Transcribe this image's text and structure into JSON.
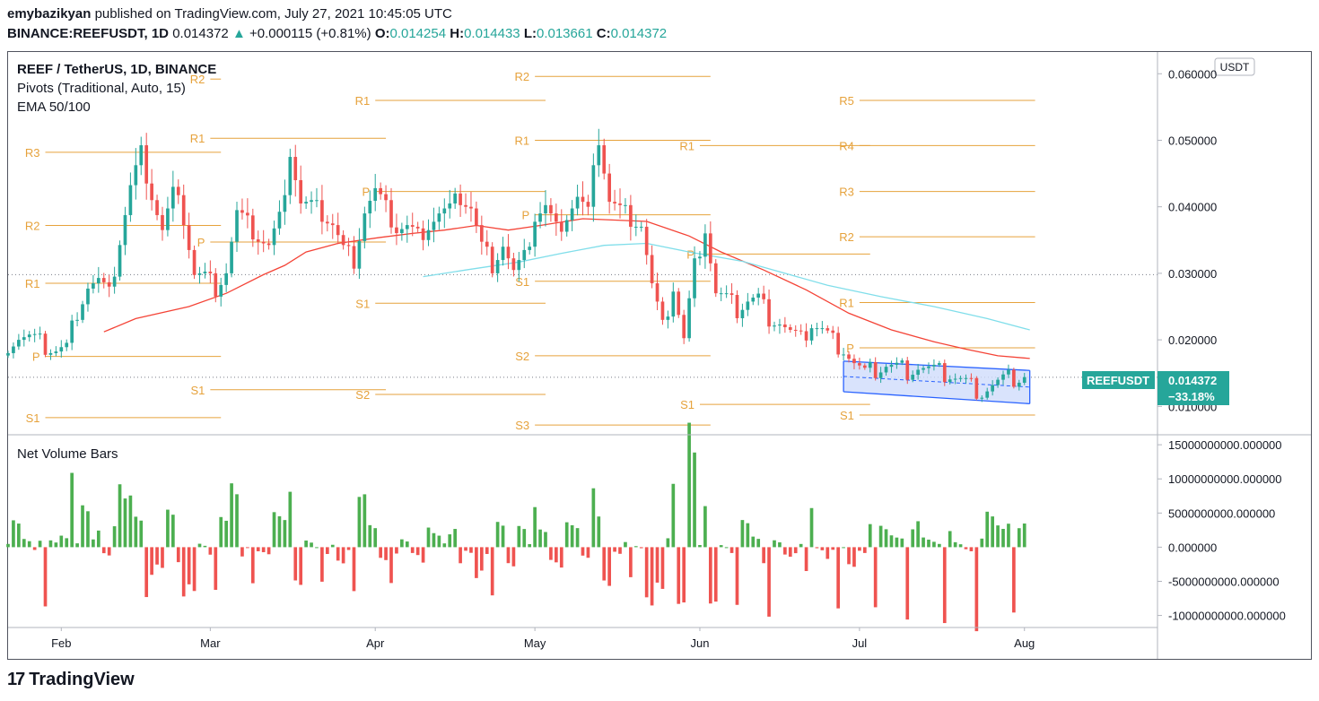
{
  "header": {
    "author": "emybazikyan",
    "published_text": "published on TradingView.com, July 27, 2021 10:45:05 UTC",
    "symbol": "BINANCE:REEFUSDT, 1D",
    "last": "0.014372",
    "arrow": "▲",
    "change": "+0.000115 (+0.81%)",
    "o_label": "O:",
    "o_value": "0.014254",
    "h_label": "H:",
    "h_value": "0.014433",
    "l_label": "L:",
    "l_value": "0.013661",
    "c_label": "C:",
    "c_value": "0.014372"
  },
  "legend": {
    "title": "REEF / TetherUS, 1D, BINANCE",
    "pivots": "Pivots (Traditional, Auto, 15)",
    "ema": "EMA 50/100",
    "volume_title": "Net Volume Bars"
  },
  "axis": {
    "currency_badge": "USDT",
    "price_ticks": [
      "0.060000",
      "0.050000",
      "0.040000",
      "0.030000",
      "0.020000",
      "0.010000"
    ],
    "price_values": [
      0.06,
      0.05,
      0.04,
      0.03,
      0.02,
      0.01
    ],
    "volume_ticks": [
      "15000000000.000000",
      "10000000000.000000",
      "5000000000.000000",
      "0.000000",
      "-5000000000.000000",
      "-10000000000.000000"
    ],
    "volume_values": [
      15000000000,
      10000000000,
      5000000000,
      0,
      -5000000000,
      -10000000000
    ],
    "time_ticks": [
      "Feb",
      "Mar",
      "Apr",
      "May",
      "Jun",
      "Jul",
      "Aug"
    ]
  },
  "price_label": {
    "symbol": "REEFUSDT",
    "value": "0.014372",
    "change": "−33.18%"
  },
  "colors": {
    "up": "#26a69a",
    "down": "#ef5350",
    "vol_up": "#4caf50",
    "vol_down": "#ef5350",
    "ema50": "#f44336",
    "ema100": "#80deea",
    "pivot": "#e6a23c",
    "pivot_text": "#e6a23c",
    "channel_fill": "#cfdcfb",
    "channel_line": "#2962ff",
    "badge": "#26a69a"
  },
  "logo": {
    "mark": "17",
    "text": "TradingView"
  },
  "chart_data": {
    "type": "candlestick",
    "title": "REEF / TetherUS, 1D, BINANCE",
    "ylim": [
      0.006,
      0.063
    ],
    "x_range_days": [
      0,
      216
    ],
    "time_ticks_day": [
      10,
      38,
      69,
      99,
      130,
      160,
      191
    ],
    "pivot_segments": [
      {
        "label": "R3",
        "value": 0.0482,
        "d0": 7,
        "d1": 40
      },
      {
        "label": "R2",
        "value": 0.0372,
        "d0": 7,
        "d1": 40
      },
      {
        "label": "R1",
        "value": 0.0285,
        "d0": 7,
        "d1": 40
      },
      {
        "label": "P",
        "value": 0.0175,
        "d0": 7,
        "d1": 40
      },
      {
        "label": "S1",
        "value": 0.0083,
        "d0": 7,
        "d1": 40
      },
      {
        "label": "R2",
        "value": 0.0592,
        "d0": 38,
        "d1": 40
      },
      {
        "label": "R1",
        "value": 0.0503,
        "d0": 38,
        "d1": 71
      },
      {
        "label": "P",
        "value": 0.0347,
        "d0": 38,
        "d1": 71
      },
      {
        "label": "S1",
        "value": 0.0125,
        "d0": 38,
        "d1": 71
      },
      {
        "label": "R1",
        "value": 0.056,
        "d0": 69,
        "d1": 101
      },
      {
        "label": "P",
        "value": 0.0423,
        "d0": 69,
        "d1": 101
      },
      {
        "label": "S1",
        "value": 0.0255,
        "d0": 69,
        "d1": 101
      },
      {
        "label": "S2",
        "value": 0.0118,
        "d0": 69,
        "d1": 101
      },
      {
        "label": "R2",
        "value": 0.0596,
        "d0": 99,
        "d1": 132
      },
      {
        "label": "R1",
        "value": 0.05,
        "d0": 99,
        "d1": 132
      },
      {
        "label": "P",
        "value": 0.0388,
        "d0": 99,
        "d1": 132
      },
      {
        "label": "S1",
        "value": 0.0288,
        "d0": 99,
        "d1": 132
      },
      {
        "label": "S2",
        "value": 0.0176,
        "d0": 99,
        "d1": 132
      },
      {
        "label": "S3",
        "value": 0.0072,
        "d0": 99,
        "d1": 132
      },
      {
        "label": "R1",
        "value": 0.0492,
        "d0": 130,
        "d1": 162
      },
      {
        "label": "P",
        "value": 0.0329,
        "d0": 130,
        "d1": 162
      },
      {
        "label": "S1",
        "value": 0.0103,
        "d0": 130,
        "d1": 162
      },
      {
        "label": "R5",
        "value": 0.056,
        "d0": 160,
        "d1": 193
      },
      {
        "label": "R4",
        "value": 0.0492,
        "d0": 160,
        "d1": 193
      },
      {
        "label": "R3",
        "value": 0.0423,
        "d0": 160,
        "d1": 193
      },
      {
        "label": "R2",
        "value": 0.0355,
        "d0": 160,
        "d1": 193
      },
      {
        "label": "R1",
        "value": 0.0256,
        "d0": 160,
        "d1": 193
      },
      {
        "label": "P",
        "value": 0.0188,
        "d0": 160,
        "d1": 193
      },
      {
        "label": "S1",
        "value": 0.0087,
        "d0": 160,
        "d1": 193
      }
    ],
    "close_anchors": [
      [
        0,
        0.0195
      ],
      [
        2,
        0.0205
      ],
      [
        4,
        0.0203
      ],
      [
        7,
        0.019
      ],
      [
        9,
        0.0185
      ],
      [
        11,
        0.0188
      ],
      [
        13,
        0.0245
      ],
      [
        15,
        0.0282
      ],
      [
        17,
        0.0288
      ],
      [
        19,
        0.0265
      ],
      [
        21,
        0.035
      ],
      [
        23,
        0.043
      ],
      [
        25,
        0.048
      ],
      [
        27,
        0.042
      ],
      [
        29,
        0.0365
      ],
      [
        31,
        0.042
      ],
      [
        33,
        0.0385
      ],
      [
        35,
        0.03
      ],
      [
        37,
        0.0295
      ],
      [
        39,
        0.028
      ],
      [
        41,
        0.0305
      ],
      [
        43,
        0.039
      ],
      [
        45,
        0.0372
      ],
      [
        47,
        0.0355
      ],
      [
        49,
        0.034
      ],
      [
        51,
        0.038
      ],
      [
        53,
        0.0485
      ],
      [
        55,
        0.0405
      ],
      [
        57,
        0.04
      ],
      [
        59,
        0.039
      ],
      [
        61,
        0.0375
      ],
      [
        63,
        0.0335
      ],
      [
        65,
        0.0322
      ],
      [
        67,
        0.0395
      ],
      [
        69,
        0.0423
      ],
      [
        71,
        0.0395
      ],
      [
        73,
        0.0368
      ],
      [
        75,
        0.037
      ],
      [
        77,
        0.0355
      ],
      [
        79,
        0.0375
      ],
      [
        81,
        0.039
      ],
      [
        83,
        0.0395
      ],
      [
        85,
        0.0415
      ],
      [
        87,
        0.04
      ],
      [
        89,
        0.034
      ],
      [
        91,
        0.0315
      ],
      [
        93,
        0.0345
      ],
      [
        95,
        0.03
      ],
      [
        97,
        0.032
      ],
      [
        99,
        0.0385
      ],
      [
        101,
        0.04
      ],
      [
        103,
        0.0365
      ],
      [
        105,
        0.039
      ],
      [
        107,
        0.0415
      ],
      [
        109,
        0.039
      ],
      [
        111,
        0.0505
      ],
      [
        113,
        0.041
      ],
      [
        115,
        0.0395
      ],
      [
        117,
        0.0385
      ],
      [
        119,
        0.0375
      ],
      [
        121,
        0.028
      ],
      [
        123,
        0.0215
      ],
      [
        125,
        0.028
      ],
      [
        127,
        0.02
      ],
      [
        129,
        0.031
      ],
      [
        131,
        0.037
      ],
      [
        133,
        0.027
      ],
      [
        135,
        0.026
      ],
      [
        137,
        0.0245
      ],
      [
        139,
        0.026
      ],
      [
        141,
        0.0262
      ],
      [
        143,
        0.0235
      ],
      [
        145,
        0.0228
      ],
      [
        147,
        0.021
      ],
      [
        149,
        0.0198
      ],
      [
        151,
        0.0225
      ],
      [
        153,
        0.0215
      ],
      [
        155,
        0.0198
      ],
      [
        157,
        0.0188
      ],
      [
        159,
        0.0165
      ],
      [
        161,
        0.0148
      ],
      [
        163,
        0.0155
      ],
      [
        165,
        0.0162
      ],
      [
        167,
        0.0158
      ],
      [
        169,
        0.0155
      ],
      [
        171,
        0.016
      ],
      [
        173,
        0.0155
      ],
      [
        175,
        0.015
      ],
      [
        177,
        0.0148
      ],
      [
        179,
        0.014
      ],
      [
        181,
        0.013
      ],
      [
        183,
        0.0123
      ],
      [
        185,
        0.0132
      ],
      [
        187,
        0.0138
      ],
      [
        189,
        0.0142
      ],
      [
        191,
        0.0144
      ]
    ],
    "ema50": [
      [
        18,
        0.0212
      ],
      [
        24,
        0.0232
      ],
      [
        34,
        0.025
      ],
      [
        41,
        0.027
      ],
      [
        48,
        0.0298
      ],
      [
        52,
        0.0312
      ],
      [
        56,
        0.0332
      ],
      [
        62,
        0.0345
      ],
      [
        70,
        0.0354
      ],
      [
        76,
        0.036
      ],
      [
        82,
        0.0365
      ],
      [
        88,
        0.0372
      ],
      [
        94,
        0.0365
      ],
      [
        100,
        0.0372
      ],
      [
        108,
        0.0382
      ],
      [
        114,
        0.038
      ],
      [
        120,
        0.0378
      ],
      [
        128,
        0.0356
      ],
      [
        134,
        0.0332
      ],
      [
        142,
        0.0305
      ],
      [
        150,
        0.0275
      ],
      [
        158,
        0.024
      ],
      [
        166,
        0.0215
      ],
      [
        174,
        0.0197
      ],
      [
        180,
        0.0186
      ],
      [
        186,
        0.0176
      ],
      [
        192,
        0.0172
      ]
    ],
    "ema100": [
      [
        78,
        0.0295
      ],
      [
        86,
        0.0305
      ],
      [
        96,
        0.0317
      ],
      [
        104,
        0.033
      ],
      [
        112,
        0.0342
      ],
      [
        120,
        0.0345
      ],
      [
        128,
        0.0332
      ],
      [
        138,
        0.0318
      ],
      [
        146,
        0.03
      ],
      [
        154,
        0.0282
      ],
      [
        164,
        0.0265
      ],
      [
        174,
        0.025
      ],
      [
        184,
        0.0232
      ],
      [
        192,
        0.0215
      ]
    ],
    "channel": {
      "upper": [
        [
          157,
          0.0168
        ],
        [
          192,
          0.0154
        ]
      ],
      "lower": [
        [
          157,
          0.0122
        ],
        [
          192,
          0.0104
        ]
      ]
    },
    "volume_range": [
      -11500000000,
      16200000000
    ]
  }
}
